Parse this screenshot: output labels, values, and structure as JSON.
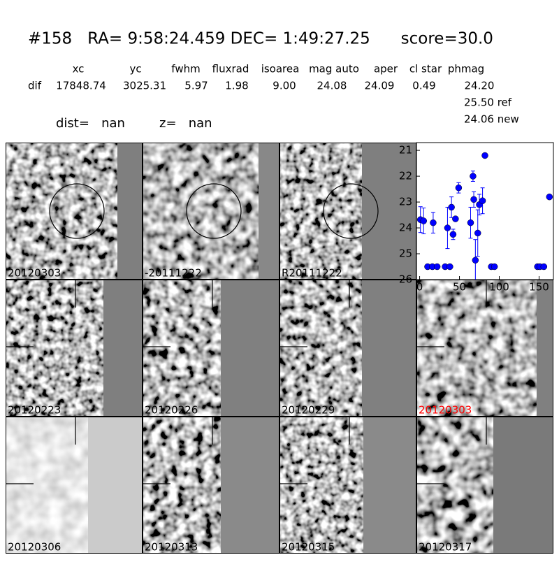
{
  "header": {
    "title": "#158   RA= 9:58:24.459 DEC= 1:49:27.25      score=30.0",
    "columns": [
      "xc",
      "yc",
      "fwhm",
      "fluxrad",
      "isoarea",
      "mag auto",
      "aper",
      "cl star",
      "phmag"
    ],
    "row_label": "dif",
    "row_values": [
      "17848.74",
      "3025.31",
      "5.97",
      "1.98",
      "9.00",
      "24.08",
      "24.09",
      "0.49",
      "24.20"
    ],
    "ref": "25.50 ref",
    "new": "24.06 new",
    "dist": "dist=   nan",
    "z": "z=   nan"
  },
  "stamps": [
    {
      "label": "20120303"
    },
    {
      "label": "-20111222"
    },
    {
      "label": "R20111222"
    },
    {
      "label": "20120223"
    },
    {
      "label": "20120226"
    },
    {
      "label": "20120229"
    },
    {
      "label": "20120303",
      "color": "#ff0000"
    },
    {
      "label": "20120306"
    },
    {
      "label": "20120313"
    },
    {
      "label": "20120315"
    },
    {
      "label": "20120317"
    }
  ],
  "chart_data": {
    "type": "scatter",
    "series": [
      {
        "color": "#0000ff",
        "x": [
          1,
          5,
          10,
          16,
          17,
          22,
          32,
          35,
          38,
          40,
          42,
          45,
          49,
          64,
          67,
          68,
          70,
          73,
          75,
          79,
          82,
          90,
          94,
          148,
          151,
          156,
          163
        ],
        "values": [
          23.68,
          23.73,
          25.5,
          25.5,
          23.8,
          25.5,
          25.5,
          24.0,
          25.5,
          23.2,
          24.25,
          23.65,
          22.45,
          23.8,
          22.0,
          22.9,
          25.25,
          24.2,
          23.1,
          22.95,
          21.2,
          25.5,
          25.5,
          25.5,
          25.5,
          25.5,
          22.8
        ],
        "errors": [
          0.5,
          0.5,
          0,
          0,
          0.4,
          0,
          0,
          0.8,
          0,
          0.4,
          0.2,
          0,
          0.2,
          0.6,
          0.2,
          0.3,
          0.8,
          0.9,
          0.4,
          0.5,
          0,
          0,
          0,
          0,
          0,
          0,
          0
        ]
      }
    ],
    "xlim": [
      -4,
      168
    ],
    "xticks": [
      0,
      50,
      100,
      150
    ],
    "ylim": [
      20.7,
      26
    ],
    "yticks": [
      21,
      22,
      23,
      24,
      25,
      26
    ],
    "invert_y": true
  }
}
